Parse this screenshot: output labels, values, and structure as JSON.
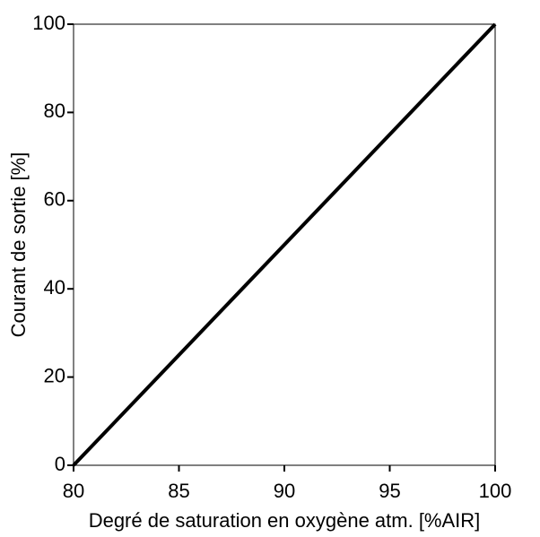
{
  "chart_data": {
    "type": "line",
    "x": [
      80,
      100
    ],
    "series": [
      {
        "color": "#000000",
        "values": [
          0,
          100
        ]
      }
    ],
    "xlabel": "Degré de saturation en oxygène atm. [%AIR]",
    "ylabel": "Courant de sortie [%]",
    "xlim": [
      80,
      100
    ],
    "xticks": [
      80,
      85,
      90,
      95,
      100
    ],
    "ylim": [
      0,
      100
    ],
    "yticks": [
      0,
      20,
      40,
      60,
      80,
      100
    ],
    "grid": false
  }
}
